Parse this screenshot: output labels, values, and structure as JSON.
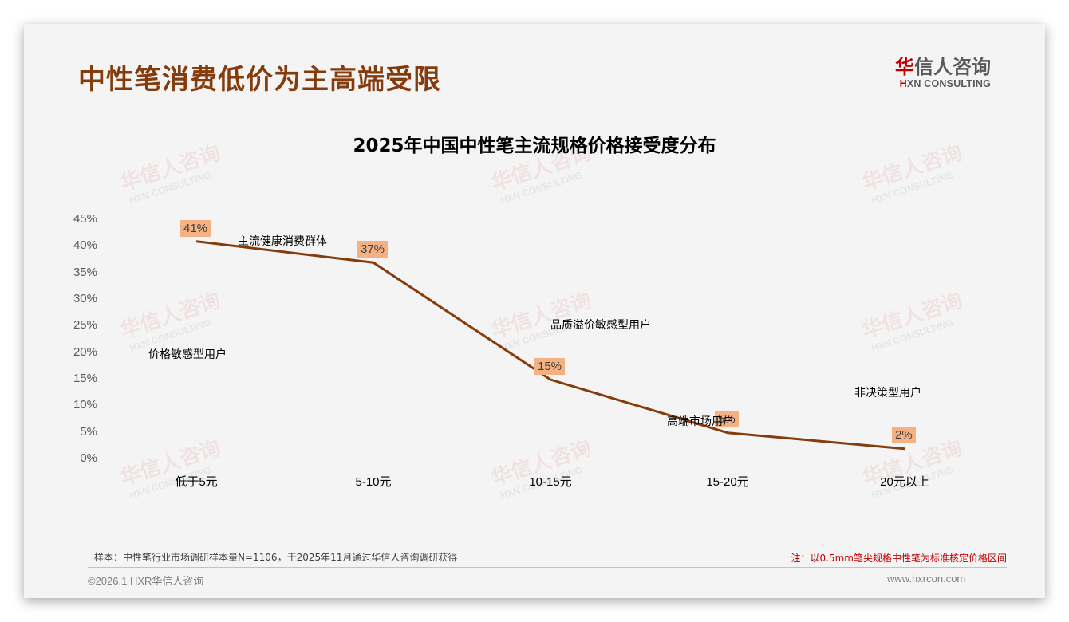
{
  "header": {
    "title": "中性笔消费低价为主高端受限",
    "logo": {
      "cn_accent": "华",
      "cn_rest": "信人咨询",
      "en_accent": "H",
      "en_rest": "XN CONSULTING"
    }
  },
  "watermark": {
    "cn": "华信人咨询",
    "en": "HXN CONSULTING"
  },
  "chart_data": {
    "type": "line",
    "title": "2025年中国中性笔主流规格价格接受度分布",
    "xlabel": "",
    "ylabel": "",
    "categories": [
      "低于5元",
      "5-10元",
      "10-15元",
      "15-20元",
      "20元以上"
    ],
    "values": [
      41,
      37,
      15,
      5,
      2
    ],
    "value_labels": [
      "41%",
      "37%",
      "15%",
      "5%",
      "2%"
    ],
    "ylim": [
      0,
      45
    ],
    "yticks": [
      "0%",
      "5%",
      "10%",
      "15%",
      "20%",
      "25%",
      "30%",
      "35%",
      "40%",
      "45%"
    ],
    "line_color": "#843c0c",
    "label_bg_color": "#f4b183",
    "grid": false,
    "legend": "none",
    "annotations": [
      "价格敏感型用户",
      "主流健康消费群体",
      "品质溢价敏感型用户",
      "高端市场用户",
      "非决策型用户"
    ]
  },
  "footer": {
    "sample": "样本：中性笔行业市场调研样本量N=1106，于2025年11月通过华信人咨询调研获得",
    "note": "注：以0.5mm笔尖规格中性笔为标准核定价格区间",
    "copyright": "©2026.1 HXR华信人咨询",
    "website": "www.hxrcon.com"
  }
}
